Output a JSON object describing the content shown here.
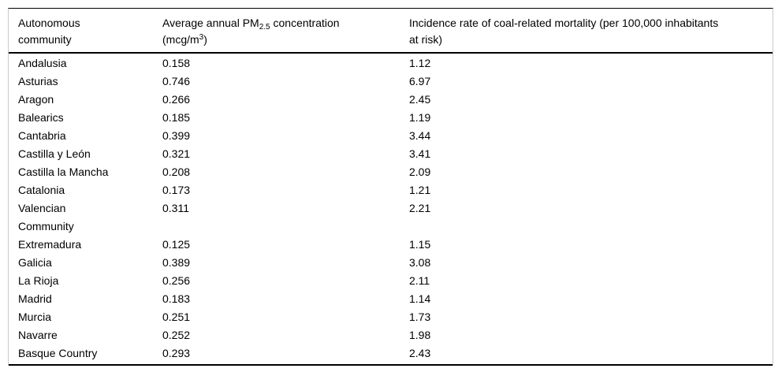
{
  "table": {
    "header": {
      "community_label": "Autonomous\ncommunity",
      "pm": {
        "line1_pre": "Average annual PM",
        "line1_sub": "2.5",
        "line1_post": " concentration",
        "line2_pre": "(mcg/m",
        "line2_sup": "3",
        "line2_post": ")"
      },
      "rate_label": "Incidence rate of coal-related mortality (per 100,000 inhabitants\nat risk)"
    },
    "rows": [
      {
        "name": "Andalusia",
        "pm25": "0.158",
        "rate": "1.12"
      },
      {
        "name": "Asturias",
        "pm25": "0.746",
        "rate": "6.97"
      },
      {
        "name": "Aragon",
        "pm25": "0.266",
        "rate": "2.45"
      },
      {
        "name": "Balearics",
        "pm25": "0.185",
        "rate": "1.19"
      },
      {
        "name": "Cantabria",
        "pm25": "0.399",
        "rate": "3.44"
      },
      {
        "name": "Castilla y León",
        "pm25": "0.321",
        "rate": "3.41"
      },
      {
        "name": "Castilla la Mancha",
        "pm25": "0.208",
        "rate": "2.09"
      },
      {
        "name": "Catalonia",
        "pm25": "0.173",
        "rate": "1.21"
      },
      {
        "name": "Valencian\nCommunity",
        "pm25": "0.311",
        "rate": "2.21"
      },
      {
        "name": "Extremadura",
        "pm25": "0.125",
        "rate": "1.15"
      },
      {
        "name": "Galicia",
        "pm25": "0.389",
        "rate": "3.08"
      },
      {
        "name": "La Rioja",
        "pm25": "0.256",
        "rate": "2.11"
      },
      {
        "name": "Madrid",
        "pm25": "0.183",
        "rate": "1.14"
      },
      {
        "name": "Murcia",
        "pm25": "0.251",
        "rate": "1.73"
      },
      {
        "name": "Navarre",
        "pm25": "0.252",
        "rate": "1.98"
      },
      {
        "name": "Basque Country",
        "pm25": "0.293",
        "rate": "2.43"
      }
    ],
    "colors": {
      "text": "#000000",
      "rule": "#000000",
      "side_border": "#c9c9c9",
      "background": "#ffffff"
    }
  },
  "chart_data": {
    "type": "table",
    "columns": [
      "Autonomous community",
      "Average annual PM2.5 concentration (mcg/m3)",
      "Incidence rate of coal-related mortality (per 100,000 inhabitants at risk)"
    ],
    "rows": [
      [
        "Andalusia",
        0.158,
        1.12
      ],
      [
        "Asturias",
        0.746,
        6.97
      ],
      [
        "Aragon",
        0.266,
        2.45
      ],
      [
        "Balearics",
        0.185,
        1.19
      ],
      [
        "Cantabria",
        0.399,
        3.44
      ],
      [
        "Castilla y León",
        0.321,
        3.41
      ],
      [
        "Castilla la Mancha",
        0.208,
        2.09
      ],
      [
        "Catalonia",
        0.173,
        1.21
      ],
      [
        "Valencian Community",
        0.311,
        2.21
      ],
      [
        "Extremadura",
        0.125,
        1.15
      ],
      [
        "Galicia",
        0.389,
        3.08
      ],
      [
        "La Rioja",
        0.256,
        2.11
      ],
      [
        "Madrid",
        0.183,
        1.14
      ],
      [
        "Murcia",
        0.251,
        1.73
      ],
      [
        "Navarre",
        0.252,
        1.98
      ],
      [
        "Basque Country",
        0.293,
        2.43
      ]
    ]
  }
}
